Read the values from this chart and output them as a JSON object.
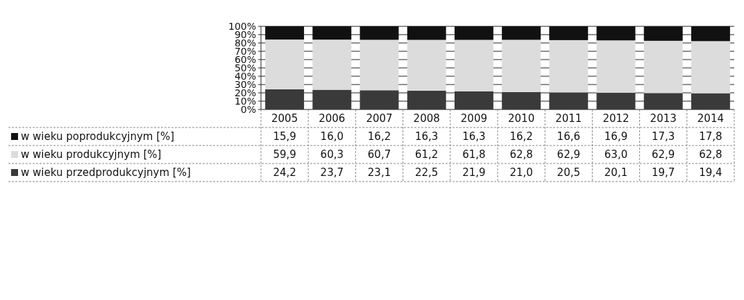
{
  "chart_data": {
    "type": "bar",
    "stacked": true,
    "grid": "y",
    "legend": "left",
    "categories": [
      "2005",
      "2006",
      "2007",
      "2008",
      "2009",
      "2010",
      "2011",
      "2012",
      "2013",
      "2014"
    ],
    "ylim": [
      0,
      100
    ],
    "yticks": [
      {
        "value": 0,
        "label": "0%"
      },
      {
        "value": 10,
        "label": "10%"
      },
      {
        "value": 20,
        "label": "20%"
      },
      {
        "value": 30,
        "label": "30%"
      },
      {
        "value": 40,
        "label": "40%"
      },
      {
        "value": 50,
        "label": "50%"
      },
      {
        "value": 60,
        "label": "60%"
      },
      {
        "value": 70,
        "label": "70%"
      },
      {
        "value": 80,
        "label": "80%"
      },
      {
        "value": 90,
        "label": "90%"
      },
      {
        "value": 100,
        "label": "100%"
      }
    ],
    "series": [
      {
        "name": "w wieku przedprodukcyjnym [%]",
        "color": "#3a3a3a",
        "values": [
          24.2,
          23.7,
          23.1,
          22.5,
          21.9,
          21.0,
          20.5,
          20.1,
          19.7,
          19.4
        ],
        "value_labels": [
          "24,2",
          "23,7",
          "23,1",
          "22,5",
          "21,9",
          "21,0",
          "20,5",
          "20,1",
          "19,7",
          "19,4"
        ]
      },
      {
        "name": "w wieku produkcyjnym [%]",
        "color": "#dcdcdc",
        "values": [
          59.9,
          60.3,
          60.7,
          61.2,
          61.8,
          62.8,
          62.9,
          63.0,
          62.9,
          62.8
        ],
        "value_labels": [
          "59,9",
          "60,3",
          "60,7",
          "61,2",
          "61,8",
          "62,8",
          "62,9",
          "63,0",
          "62,9",
          "62,8"
        ]
      },
      {
        "name": "w wieku poprodukcyjnym [%]",
        "color": "#111111",
        "values": [
          15.9,
          16.0,
          16.2,
          16.3,
          16.3,
          16.2,
          16.6,
          16.9,
          17.3,
          17.8
        ],
        "value_labels": [
          "15,9",
          "16,0",
          "16,2",
          "16,3",
          "16,3",
          "16,2",
          "16,6",
          "16,9",
          "17,3",
          "17,8"
        ]
      }
    ]
  }
}
